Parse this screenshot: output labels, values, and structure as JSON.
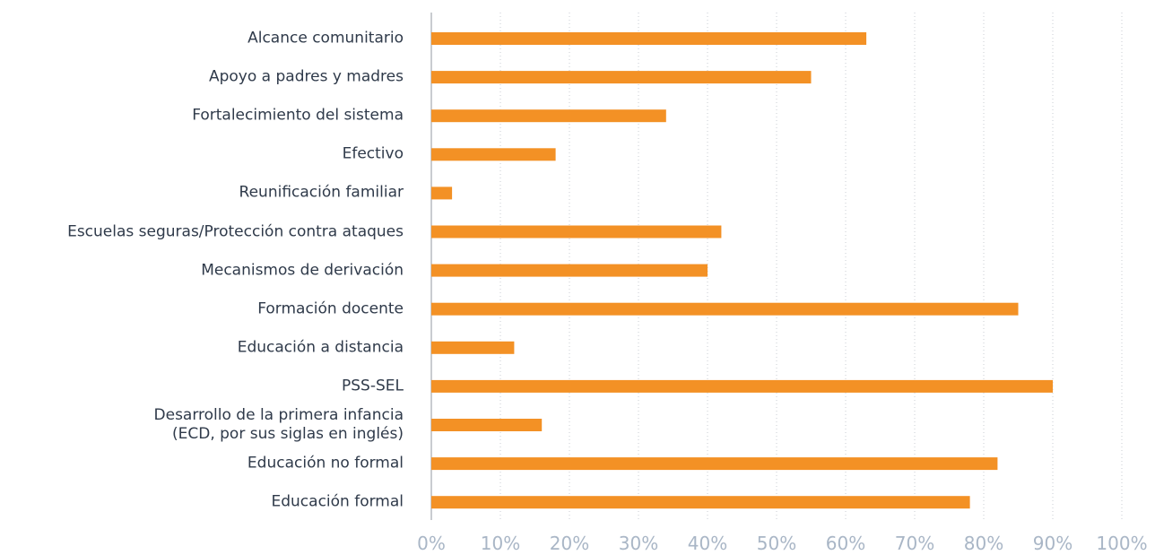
{
  "chart_data": {
    "type": "bar",
    "orientation": "horizontal",
    "categories": [
      "Alcance comunitario",
      "Apoyo a padres y madres",
      "Fortalecimiento del sistema",
      "Efectivo",
      "Reunificación familiar",
      "Escuelas seguras/Protección contra ataques",
      "Mecanismos de derivación",
      "Formación docente",
      "Educación a distancia",
      "PSS-SEL",
      "Desarrollo de la primera infancia\n(ECD, por sus siglas en inglés)",
      "Educación no formal",
      "Educación formal"
    ],
    "values": [
      63,
      55,
      34,
      18,
      3,
      42,
      40,
      85,
      12,
      90,
      16,
      82,
      78
    ],
    "color": "#f39125",
    "xlim": [
      0,
      100
    ],
    "xticks": [
      {
        "value": 0,
        "label": "0%"
      },
      {
        "value": 10,
        "label": "10%"
      },
      {
        "value": 20,
        "label": "20%"
      },
      {
        "value": 30,
        "label": "30%"
      },
      {
        "value": 40,
        "label": "40%"
      },
      {
        "value": 50,
        "label": "50%"
      },
      {
        "value": 60,
        "label": "60%"
      },
      {
        "value": 70,
        "label": "70%"
      },
      {
        "value": 80,
        "label": "80%"
      },
      {
        "value": 90,
        "label": "90%"
      },
      {
        "value": 100,
        "label": "100%"
      }
    ],
    "grid": true
  }
}
